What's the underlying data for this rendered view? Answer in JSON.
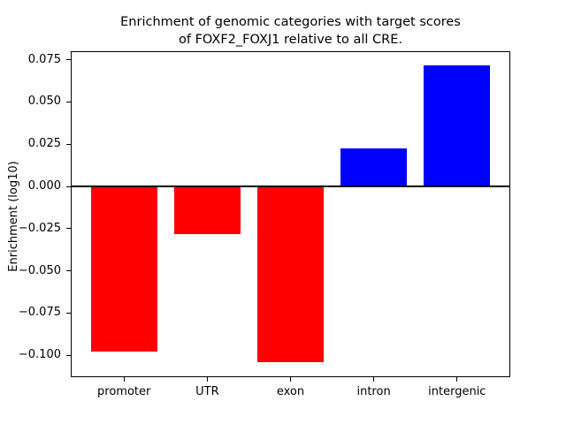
{
  "chart_data": {
    "type": "bar",
    "title": "Enrichment of genomic categories with target scores of FOXF2_FOXJ1 relative to all CRE.",
    "title_lines": [
      "Enrichment of genomic categories with target scores",
      "of FOXF2_FOXJ1 relative to all CRE."
    ],
    "xlabel": "",
    "ylabel": "Enrichment (log10)",
    "categories": [
      "promoter",
      "UTR",
      "exon",
      "intron",
      "intergenic"
    ],
    "values": [
      -0.098,
      -0.028,
      -0.104,
      0.0225,
      0.0715
    ],
    "bar_colors": [
      "#ff0000",
      "#ff0000",
      "#ff0000",
      "#0000ff",
      "#0000ff"
    ],
    "positive_color": "#0000ff",
    "negative_color": "#ff0000",
    "ylim": [
      -0.113,
      0.08
    ],
    "yticks": [
      0.075,
      0.05,
      0.025,
      0.0,
      -0.025,
      -0.05,
      -0.075,
      -0.1
    ],
    "ytick_labels": [
      "0.075",
      "0.050",
      "0.025",
      "0.000",
      "−0.025",
      "−0.050",
      "−0.075",
      "−0.100"
    ],
    "bar_width_fraction": 0.8,
    "x_edge_margin": 0.64,
    "grid": false,
    "legend": null,
    "zero_line": true,
    "axis_color": "#000000",
    "background_color": "#ffffff"
  }
}
